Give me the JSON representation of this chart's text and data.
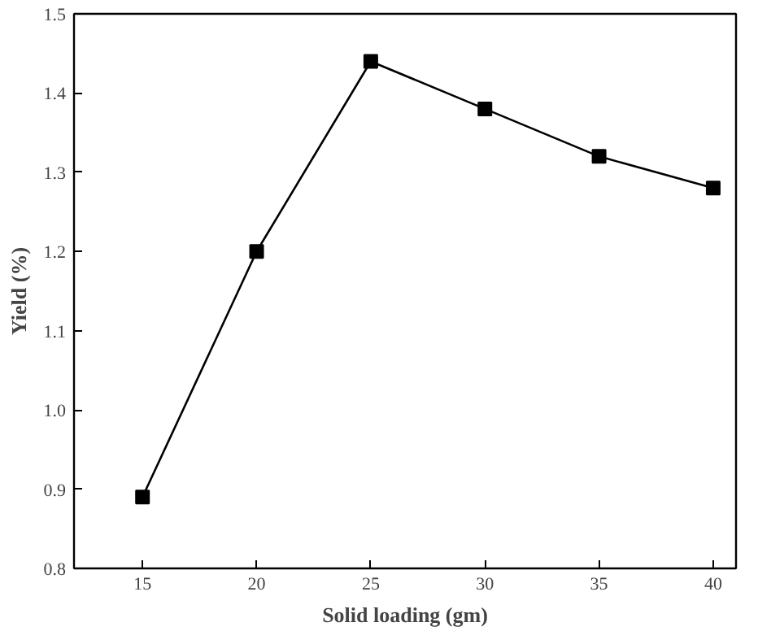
{
  "chart_data": {
    "type": "line",
    "xlabel": "Solid loading (gm)",
    "ylabel": "Yield (%)",
    "x": [
      15,
      20,
      25,
      30,
      35,
      40
    ],
    "series": [
      {
        "color": "#000000",
        "values": [
          0.89,
          1.2,
          1.44,
          1.38,
          1.32,
          1.28
        ]
      }
    ],
    "xlim": [
      12,
      41
    ],
    "ylim": [
      0.8,
      1.5
    ],
    "xticks": [
      15,
      20,
      25,
      30,
      35,
      40
    ],
    "yticks": [
      0.8,
      0.9,
      {
        "value": 1,
        "label": "1.0"
      },
      1.1,
      1.2,
      1.3,
      1.4,
      1.5
    ],
    "grid": false,
    "marker": "square",
    "line_style": "solid"
  }
}
